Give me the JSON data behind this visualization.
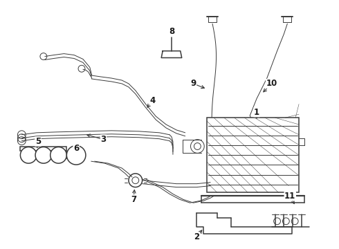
{
  "background_color": "#ffffff",
  "line_color": "#3a3a3a",
  "label_color": "#1a1a1a",
  "figsize": [
    4.9,
    3.6
  ],
  "dpi": 100
}
